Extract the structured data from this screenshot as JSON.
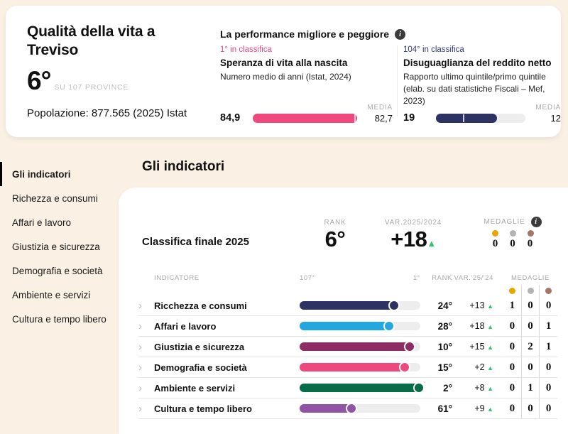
{
  "icons": {
    "info": "i",
    "chevron": "›",
    "up_triangle": "▲"
  },
  "colors": {
    "page_bg": "#faf0e4",
    "card_bg": "#ffffff",
    "positive_green": "#2dc76d",
    "track_gray": "#ededed",
    "label_gray": "#a8a8a8",
    "medal_gold": "#e7a500",
    "medal_silver": "#b3b3b3",
    "medal_bronze": "#a5756b"
  },
  "summary_card": {
    "title": "Qualità della vita a Treviso",
    "rank_value": "6°",
    "rank_suffix": "SU 107 PROVINCE",
    "population": "Popolazione: 877.565 (2025) Istat"
  },
  "performance": {
    "title": "La performance migliore e peggiore",
    "best": {
      "rank_label": "1° in classifica",
      "name": "Speranza di vita alla nascita",
      "description": "Numero medio di anni (Istat, 2024)",
      "value": "84,9",
      "media_label": "MEDIA",
      "media_value": "82,7",
      "bar_color": "#ef487f",
      "fill_pct": 100,
      "tick_pct": 97
    },
    "worst": {
      "rank_label": "104° in classifica",
      "name": "Disuguaglianza del reddito netto",
      "description": "Rapporto ultimo quintile/primo quintile (elab. su dati statistiche Fiscali – Mef, 2023)",
      "value": "19",
      "media_label": "MEDIA",
      "media_value": "12",
      "bar_color": "#2e3263",
      "fill_pct": 68,
      "tick_pct": 44
    }
  },
  "sidebar": {
    "items": [
      {
        "label": "Gli indicatori"
      },
      {
        "label": "Richezza e consumi"
      },
      {
        "label": "Affari e lavoro"
      },
      {
        "label": "Giustizia e sicurezza"
      },
      {
        "label": "Demografia e società"
      },
      {
        "label": "Ambiente e servizi"
      },
      {
        "label": "Cultura e tempo libero"
      }
    ]
  },
  "main": {
    "heading": "Gli indicatori",
    "summary": {
      "label": "Classifica finale 2025",
      "rank_label": "RANK",
      "rank_value": "6°",
      "var_label": "VAR.2025/2024",
      "var_value": "+18",
      "medals_label": "MEDAGLIE",
      "medal_counts": {
        "gold": "0",
        "silver": "0",
        "bronze": "0"
      }
    },
    "table": {
      "header": {
        "indicator": "INDICATORE",
        "scale_worst": "107°",
        "scale_best": "1°",
        "rank": "RANK",
        "var": "VAR.'25/'24",
        "medals": "MEDAGLIE"
      },
      "rows": [
        {
          "name": "Ricchezza e consumi",
          "color": "#2e3263",
          "fill_pct": 78,
          "rank": "24°",
          "var": "+13",
          "medals": [
            "1",
            "0",
            "0"
          ]
        },
        {
          "name": "Affari e lavoro",
          "color": "#22a7df",
          "fill_pct": 74,
          "rank": "28°",
          "var": "+18",
          "medals": [
            "0",
            "0",
            "1"
          ]
        },
        {
          "name": "Giustizia e sicurezza",
          "color": "#8d2d64",
          "fill_pct": 91,
          "rank": "10°",
          "var": "+15",
          "medals": [
            "0",
            "2",
            "1"
          ]
        },
        {
          "name": "Demografia e società",
          "color": "#ef487f",
          "fill_pct": 87,
          "rank": "15°",
          "var": "+2",
          "medals": [
            "0",
            "0",
            "0"
          ]
        },
        {
          "name": "Ambiente e servizi",
          "color": "#086c49",
          "fill_pct": 99,
          "rank": "2°",
          "var": "+8",
          "medals": [
            "0",
            "1",
            "0"
          ]
        },
        {
          "name": "Cultura e tempo libero",
          "color": "#9153a4",
          "fill_pct": 43,
          "rank": "61°",
          "var": "+9",
          "medals": [
            "0",
            "0",
            "0"
          ]
        }
      ]
    }
  }
}
